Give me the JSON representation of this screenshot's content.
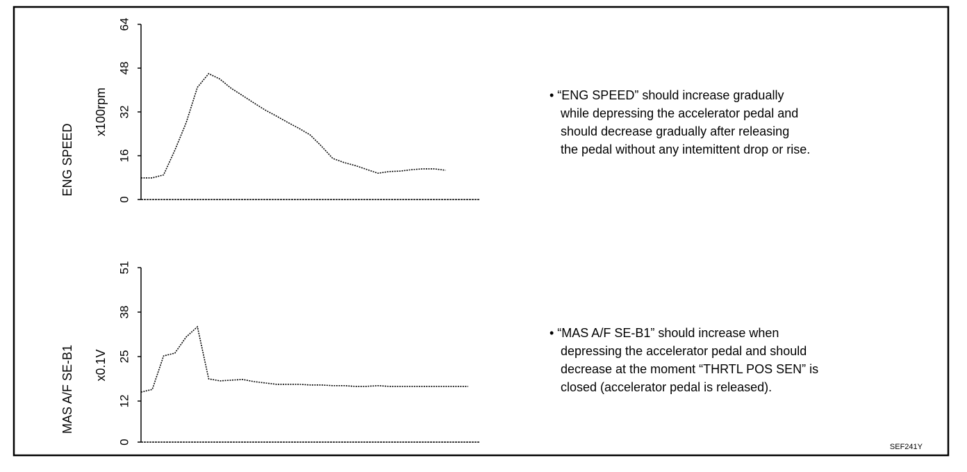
{
  "chart_data": [
    {
      "type": "line",
      "title": "ENG SPEED",
      "y_label": "x100rpm",
      "color": "#000000",
      "ylim": [
        0,
        64
      ],
      "yticks": [
        0,
        16,
        32,
        48,
        64
      ],
      "values": [
        7.9,
        7.9,
        9,
        18,
        28,
        41,
        46,
        44,
        40.6,
        38,
        35.3,
        32.7,
        30.5,
        28.2,
        26,
        23.6,
        19.5,
        15,
        13.5,
        12.4,
        11,
        9.6,
        10.2,
        10.4,
        10.9,
        11.2,
        11.2,
        10.7,
        null,
        null,
        null
      ]
    },
    {
      "type": "line",
      "title": "MAS A/F SE-B1",
      "y_label": "x0.1V",
      "color": "#000000",
      "ylim": [
        0,
        51
      ],
      "yticks": [
        0,
        12,
        25,
        38,
        51
      ],
      "values": [
        14.6,
        15.4,
        25.2,
        26,
        30.7,
        33.7,
        18.5,
        17.9,
        18.1,
        18.3,
        17.7,
        17.3,
        16.9,
        16.9,
        16.9,
        16.7,
        16.7,
        16.5,
        16.5,
        16.3,
        16.3,
        16.5,
        16.3,
        16.3,
        16.3,
        16.3,
        16.3,
        16.3,
        16.3,
        16.3,
        null
      ]
    }
  ],
  "notes": [
    {
      "lines": [
        "• “ENG SPEED” should increase gradually",
        "while depressing the accelerator pedal and",
        "should decrease gradually after releasing",
        "the pedal without any intemittent drop or rise."
      ]
    },
    {
      "lines": [
        "• “MAS A/F SE-B1” should increase when",
        "depressing the accelerator pedal and  should",
        "decrease at the moment “THRTL POS SEN” is",
        "closed (accelerator pedal is released)."
      ]
    }
  ],
  "figure_id": "SEF241Y"
}
